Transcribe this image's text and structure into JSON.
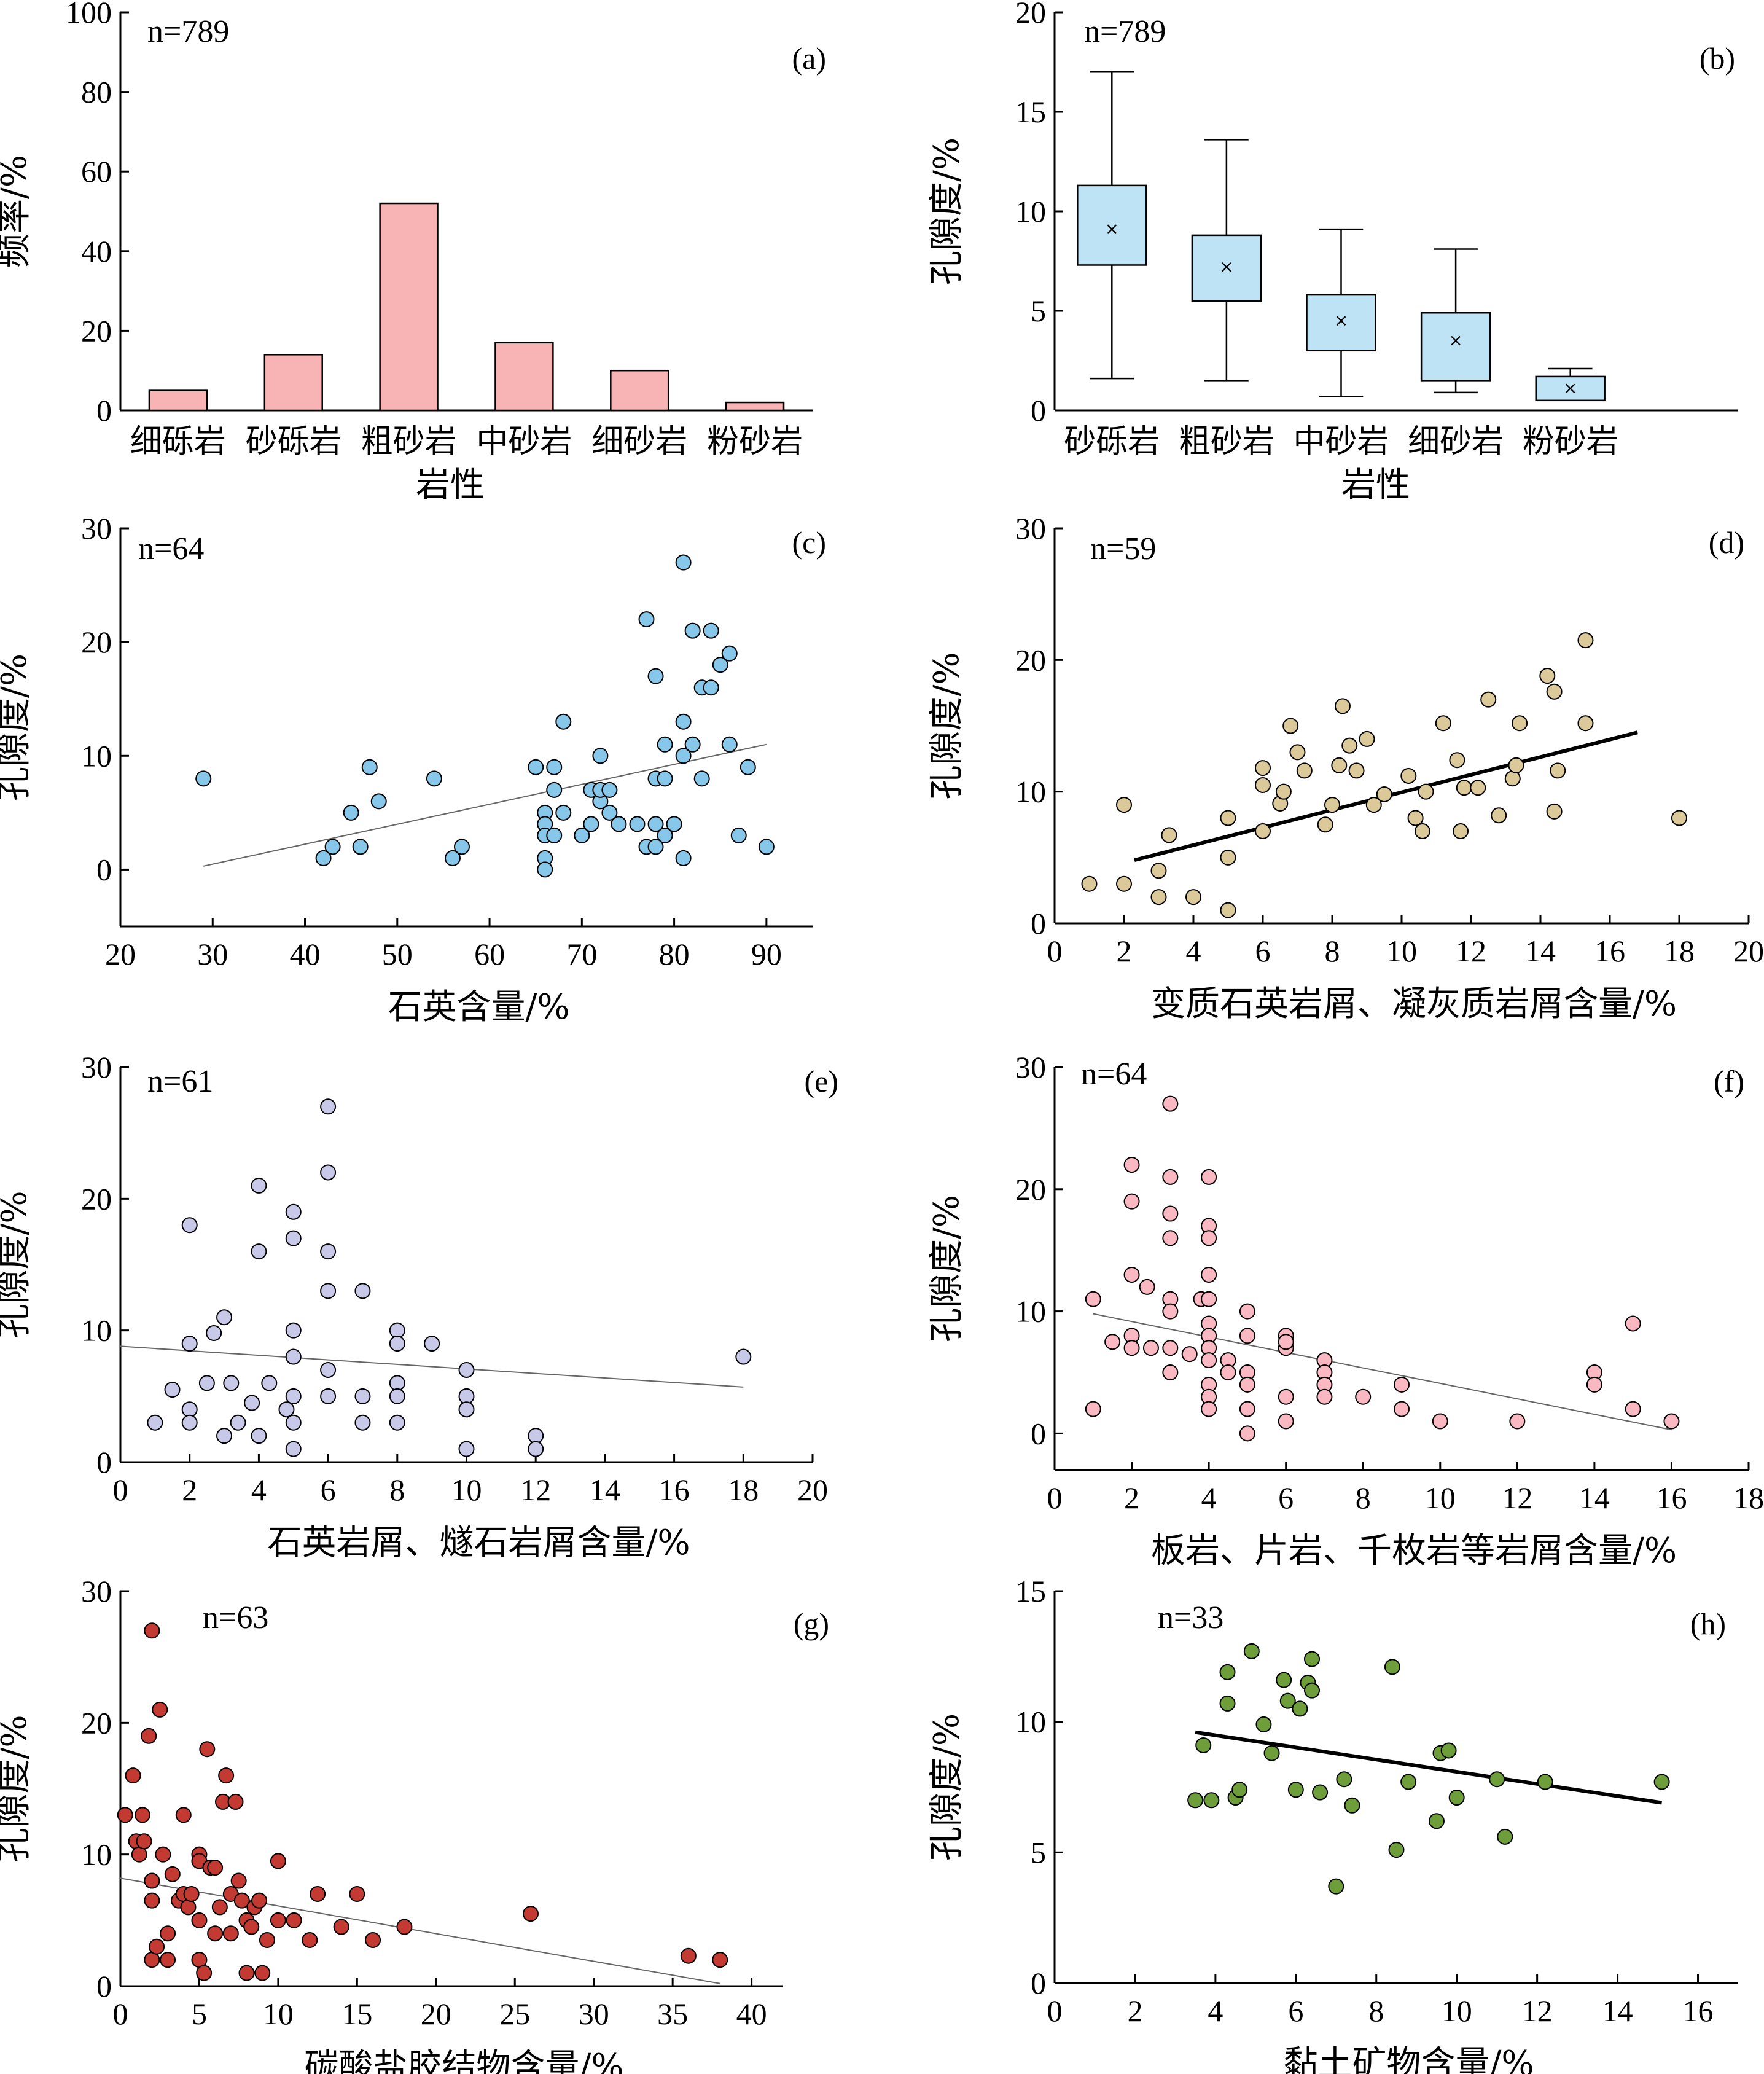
{
  "chart_data": [
    {
      "id": "a",
      "type": "bar",
      "panel_label": "(a)",
      "n_label": "n=789",
      "xlabel": "岩性",
      "ylabel": "频率/%",
      "ylim": [
        0,
        100
      ],
      "yticks": [
        0,
        20,
        40,
        60,
        80,
        100
      ],
      "categories": [
        "细砾岩",
        "砂砾岩",
        "粗砂岩",
        "中砂岩",
        "细砂岩",
        "粉砂岩"
      ],
      "values": [
        5,
        14,
        52,
        17,
        10,
        2
      ],
      "color": "#f8b4b4"
    },
    {
      "id": "b",
      "type": "box",
      "panel_label": "(b)",
      "n_label": "n=789",
      "xlabel": "岩性",
      "ylabel": "孔隙度/%",
      "ylim": [
        0,
        20
      ],
      "yticks": [
        0,
        5,
        10,
        15,
        20
      ],
      "categories": [
        "砂砾岩",
        "粗砂岩",
        "中砂岩",
        "细砂岩",
        "粉砂岩"
      ],
      "boxes": [
        {
          "min": 1.6,
          "q1": 7.3,
          "q3": 11.3,
          "max": 17.0,
          "mean": 9.1
        },
        {
          "min": 1.5,
          "q1": 5.5,
          "q3": 8.8,
          "max": 13.6,
          "mean": 7.2
        },
        {
          "min": 0.7,
          "q1": 3.0,
          "q3": 5.8,
          "max": 9.1,
          "mean": 4.5
        },
        {
          "min": 0.9,
          "q1": 1.5,
          "q3": 4.9,
          "max": 8.1,
          "mean": 3.5
        },
        {
          "min": 0.5,
          "q1": 0.5,
          "q3": 1.7,
          "max": 2.1,
          "mean": 1.1
        }
      ],
      "color": "#bde3f5"
    },
    {
      "id": "c",
      "type": "scatter",
      "panel_label": "(c)",
      "n_label": "n=64",
      "xlabel": "石英含量/%",
      "ylabel": "孔隙度/%",
      "xlim": [
        20,
        95
      ],
      "xticks": [
        20,
        30,
        40,
        50,
        60,
        70,
        80,
        90
      ],
      "ylim": [
        -5,
        30
      ],
      "yticks": [
        0,
        10,
        20,
        30
      ],
      "color": "#86c7ea",
      "x": [
        29,
        42,
        43,
        45,
        46,
        47,
        48,
        54,
        56,
        57,
        65,
        66,
        66,
        66,
        66,
        66,
        67,
        67,
        67,
        68,
        68,
        70,
        71,
        71,
        72,
        72,
        72,
        73,
        73,
        74,
        76,
        77,
        77,
        78,
        78,
        78,
        78,
        79,
        79,
        79,
        80,
        81,
        81,
        81,
        81,
        82,
        82,
        83,
        83,
        84,
        84,
        85,
        86,
        86,
        87,
        88,
        90
      ],
      "y": [
        8,
        1,
        2,
        5,
        2,
        9,
        6,
        8,
        1,
        2,
        9,
        5,
        4,
        1,
        0,
        3,
        9,
        7,
        3,
        13,
        5,
        3,
        7,
        4,
        10,
        6,
        7,
        5,
        7,
        4,
        4,
        22,
        2,
        17,
        8,
        4,
        2,
        11,
        8,
        3,
        4,
        27,
        13,
        10,
        1,
        21,
        11,
        16,
        8,
        21,
        16,
        18,
        19,
        11,
        3,
        9,
        2
      ],
      "fit": [
        [
          29,
          0.3
        ],
        [
          90,
          11.0
        ]
      ]
    },
    {
      "id": "d",
      "type": "scatter",
      "panel_label": "(d)",
      "n_label": "n=59",
      "xlabel": "变质石英岩屑、凝灰质岩屑含量/%",
      "ylabel": "孔隙度/%",
      "xlim": [
        0,
        20
      ],
      "xticks": [
        0,
        2,
        4,
        6,
        8,
        10,
        12,
        14,
        16,
        18,
        20
      ],
      "ylim": [
        0,
        30
      ],
      "yticks": [
        0,
        10,
        20,
        30
      ],
      "color": "#dcc99a",
      "x": [
        1,
        2,
        2,
        3,
        3,
        3.3,
        4,
        5,
        5,
        5,
        6,
        6,
        6,
        6.5,
        6.6,
        6.8,
        7,
        7.2,
        7.8,
        8,
        8.2,
        8.3,
        8.5,
        8.7,
        9,
        9.2,
        9.5,
        10.2,
        10.4,
        10.6,
        10.7,
        11.2,
        11.6,
        11.7,
        11.8,
        12.2,
        12.5,
        12.8,
        13.2,
        13.3,
        13.4,
        14.2,
        14.4,
        14.4,
        14.5,
        15.3,
        15.3,
        18
      ],
      "y": [
        3,
        3,
        9,
        2,
        4,
        6.7,
        2,
        1,
        5,
        8,
        7,
        10.5,
        11.8,
        9.1,
        10,
        15,
        13,
        11.6,
        7.5,
        9,
        12,
        16.5,
        13.5,
        11.6,
        14,
        9,
        9.8,
        11.2,
        8,
        7,
        10,
        15.2,
        12.4,
        7,
        10.3,
        10.3,
        17,
        8.2,
        11,
        12,
        15.2,
        18.8,
        8.5,
        17.6,
        11.6,
        15.2,
        21.5,
        8
      ],
      "fit": [
        [
          2.3,
          4.8
        ],
        [
          16.8,
          14.5
        ]
      ]
    },
    {
      "id": "e",
      "type": "scatter",
      "panel_label": "(e)",
      "n_label": "n=61",
      "xlabel": "石英岩屑、燧石岩屑含量/%",
      "ylabel": "孔隙度/%",
      "xlim": [
        0,
        20
      ],
      "xticks": [
        0,
        2,
        4,
        6,
        8,
        10,
        12,
        14,
        16,
        18,
        20
      ],
      "ylim": [
        0,
        30
      ],
      "yticks": [
        0,
        10,
        20,
        30
      ],
      "color": "#c8c8e8",
      "x": [
        1,
        1.5,
        2,
        2,
        2,
        2,
        2.5,
        2.7,
        3,
        3,
        3.2,
        3.4,
        3.8,
        4,
        4,
        4,
        4.3,
        4.8,
        5,
        5,
        5,
        5,
        5,
        5,
        5,
        6,
        6,
        6,
        6,
        6,
        6,
        7,
        7,
        7,
        8,
        8,
        8,
        8,
        8,
        9,
        10,
        10,
        10,
        10,
        12,
        12,
        18
      ],
      "y": [
        3,
        5.5,
        18,
        9,
        4,
        3,
        6,
        9.8,
        11,
        2,
        6,
        3,
        4.5,
        21,
        16,
        2,
        6,
        4,
        19,
        17,
        10,
        8,
        5,
        3,
        1,
        27,
        22,
        16,
        13,
        7,
        5,
        13,
        5,
        3,
        10,
        9,
        6,
        5,
        3,
        9,
        7,
        5,
        4,
        1,
        2,
        1,
        8
      ],
      "fit": [
        [
          0,
          8.8
        ],
        [
          18,
          5.7
        ]
      ]
    },
    {
      "id": "f",
      "type": "scatter",
      "panel_label": "(f)",
      "n_label": "n=64",
      "xlabel": "板岩、片岩、千枚岩等岩屑含量/%",
      "ylabel": "孔隙度/%",
      "xlim": [
        0,
        18
      ],
      "xticks": [
        0,
        2,
        4,
        6,
        8,
        10,
        12,
        14,
        16,
        18
      ],
      "ylim": [
        -3,
        30
      ],
      "yticks": [
        0,
        10,
        20,
        30
      ],
      "color": "#f9b8c2",
      "x": [
        1,
        1,
        1.5,
        2,
        2,
        2,
        2,
        2,
        2.4,
        2.5,
        3,
        3,
        3,
        3,
        3,
        3,
        3,
        3,
        3.5,
        3.8,
        4,
        4,
        4,
        4,
        4,
        4,
        4,
        4,
        4,
        4,
        4,
        4,
        4.5,
        4.5,
        5,
        5,
        5,
        5,
        5,
        5,
        6,
        6,
        6,
        6,
        6,
        7,
        7,
        7,
        7,
        8,
        9,
        9,
        10,
        12,
        14,
        14,
        15,
        15,
        16
      ],
      "y": [
        11,
        2,
        7.5,
        22,
        19,
        13,
        8,
        7,
        12,
        7,
        27,
        21,
        18,
        16,
        11,
        10,
        7,
        5,
        6.5,
        11,
        21,
        17,
        16,
        13,
        11,
        9,
        8,
        7,
        6,
        4,
        3,
        2,
        6,
        5,
        10,
        8,
        5,
        4,
        2,
        0,
        8,
        7,
        3,
        1,
        7.5,
        6,
        5,
        4,
        3,
        3,
        4,
        2,
        1,
        1,
        5,
        4,
        9,
        2,
        1
      ],
      "fit": [
        [
          1,
          9.8
        ],
        [
          16,
          0.3
        ]
      ]
    },
    {
      "id": "g",
      "type": "scatter",
      "panel_label": "(g)",
      "n_label": "n=63",
      "xlabel": "碳酸盐胶结物含量/%",
      "ylabel": "孔隙度/%",
      "xlim": [
        0,
        42
      ],
      "xticks": [
        0,
        5,
        10,
        15,
        20,
        25,
        30,
        35,
        40
      ],
      "ylim": [
        0,
        30
      ],
      "yticks": [
        0,
        10,
        20,
        30
      ],
      "color": "#c33a32",
      "x": [
        0.3,
        0.8,
        1,
        1.2,
        1.4,
        1.5,
        1.8,
        2,
        2,
        2,
        2,
        2.3,
        2.5,
        2.7,
        3,
        3,
        3.3,
        3.7,
        4,
        4,
        4.3,
        4.5,
        5,
        5,
        5,
        5,
        5.3,
        5.5,
        5.7,
        6,
        6,
        6.3,
        6.5,
        6.7,
        7,
        7,
        7.3,
        7.5,
        7.7,
        8,
        8,
        8.3,
        8.5,
        8.8,
        9,
        9.3,
        10,
        10,
        11,
        12,
        12.5,
        14,
        15,
        16,
        18,
        26,
        36,
        38
      ],
      "y": [
        13,
        16,
        11,
        10,
        13,
        11,
        19,
        27,
        8,
        6.5,
        2,
        3,
        21,
        10,
        4,
        2,
        8.5,
        6.5,
        13,
        7,
        6,
        7,
        10,
        9.5,
        5,
        2,
        1,
        18,
        9,
        9,
        4,
        6,
        14,
        16,
        7,
        4,
        14,
        8,
        6.5,
        5,
        1,
        4.5,
        6,
        6.5,
        1,
        3.5,
        9.5,
        5,
        5,
        3.5,
        7,
        4.5,
        7,
        3.5,
        4.5,
        5.5,
        2.3,
        2
      ],
      "fit": [
        [
          0,
          8.2
        ],
        [
          38,
          0.2
        ]
      ]
    },
    {
      "id": "h",
      "type": "scatter",
      "panel_label": "(h)",
      "n_label": "n=33",
      "xlabel": "黏土矿物含量/%",
      "ylabel": "孔隙度/%",
      "xlim": [
        0,
        17
      ],
      "xticks": [
        0,
        2,
        4,
        6,
        8,
        10,
        12,
        14,
        16
      ],
      "ylim": [
        0,
        15
      ],
      "yticks": [
        0,
        5,
        10,
        15
      ],
      "color": "#6e9e3a",
      "x": [
        3.5,
        3.7,
        3.9,
        4.3,
        4.3,
        4.5,
        4.6,
        4.9,
        5.2,
        5.4,
        5.7,
        5.8,
        6.0,
        6.1,
        6.3,
        6.4,
        6.4,
        6.6,
        7.0,
        7.2,
        7.4,
        8.4,
        8.5,
        8.8,
        9.5,
        9.6,
        9.8,
        10.0,
        11.0,
        11.2,
        12.2,
        15.1
      ],
      "y": [
        7.0,
        9.1,
        7.0,
        10.7,
        11.9,
        7.1,
        7.4,
        12.7,
        9.9,
        8.8,
        11.6,
        10.8,
        7.4,
        10.5,
        11.5,
        11.2,
        12.4,
        7.3,
        3.7,
        7.8,
        6.8,
        12.1,
        5.1,
        7.7,
        6.2,
        8.8,
        8.9,
        7.1,
        7.8,
        5.6,
        7.7,
        7.7
      ],
      "fit": [
        [
          3.5,
          9.6
        ],
        [
          15.1,
          6.9
        ]
      ]
    }
  ]
}
